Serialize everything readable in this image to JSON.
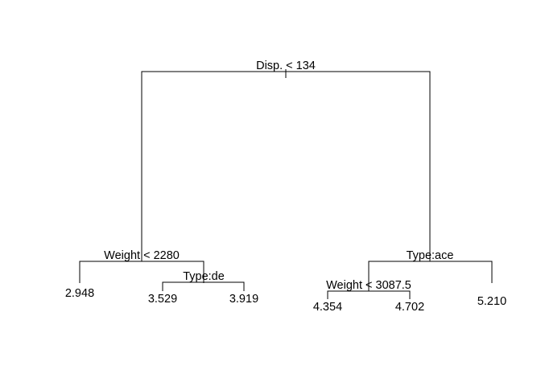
{
  "tree": {
    "root": {
      "split": "Disp. < 134",
      "left": {
        "split": "Weight < 2280",
        "left": {
          "leaf": "2.948"
        },
        "right": {
          "split": "Type:de",
          "left": {
            "leaf": "3.529"
          },
          "right": {
            "leaf": "3.919"
          }
        }
      },
      "right": {
        "split": "Type:ace",
        "left": {
          "split": "Weight < 3087.5",
          "left": {
            "leaf": "4.354"
          },
          "right": {
            "leaf": "4.702"
          }
        },
        "right": {
          "leaf": "5.210"
        }
      }
    }
  }
}
